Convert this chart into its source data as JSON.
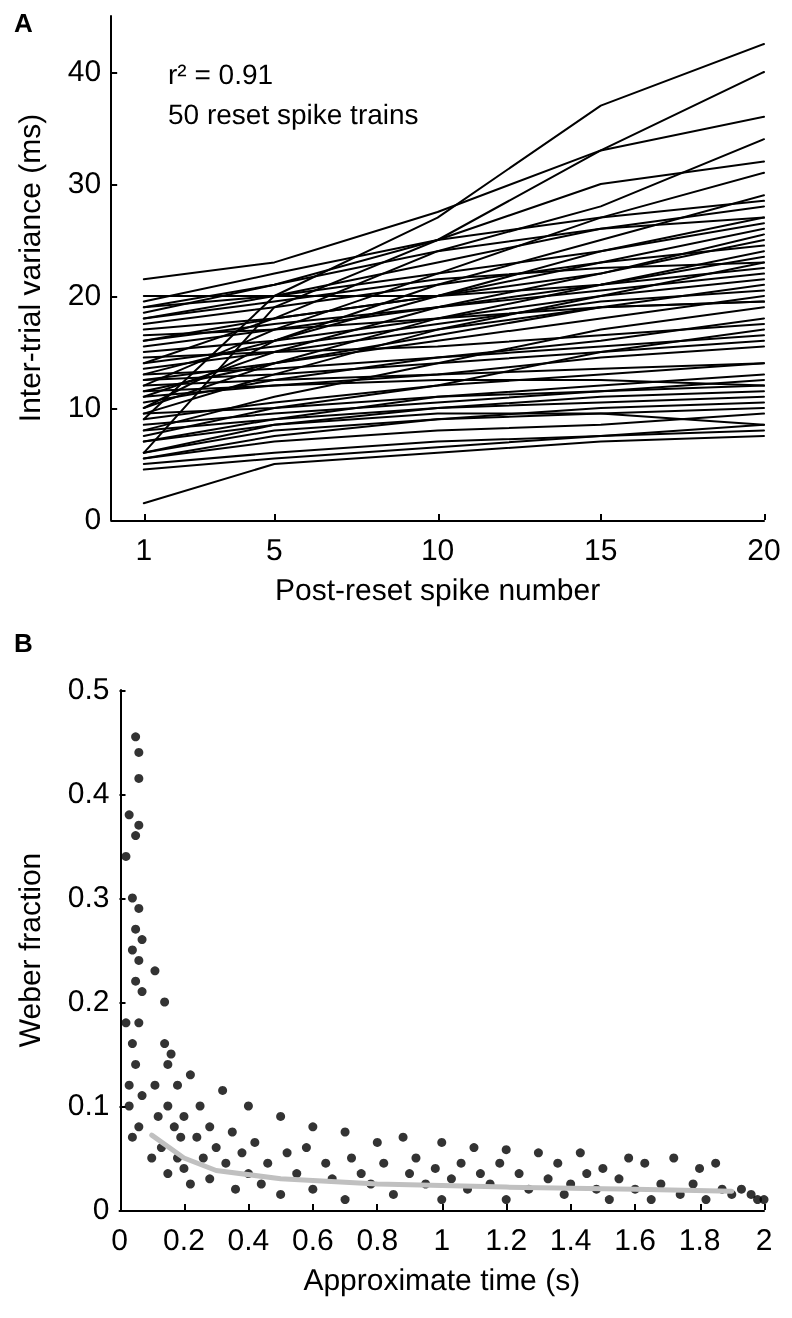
{
  "chart_data": [
    {
      "type": "line",
      "title": "A",
      "xlabel": "Post-reset spike number",
      "ylabel": "Inter-trial variance (ms)",
      "annotations": [
        "r² = 0.91",
        "50 reset spike trains"
      ],
      "marker": "none",
      "line_style": "solid",
      "xlim": [
        0,
        20
      ],
      "ylim": [
        0,
        45
      ],
      "xticks": [
        1,
        5,
        10,
        15,
        20
      ],
      "yticks": [
        0,
        10,
        20,
        30,
        40
      ],
      "x": [
        1,
        5,
        10,
        15,
        20
      ],
      "series": [
        {
          "color": "#000000",
          "values": [
            9,
            20,
            27,
            37,
            42.5
          ]
        },
        {
          "color": "#000000",
          "values": [
            6,
            19,
            25,
            33,
            40
          ]
        },
        {
          "color": "#000000",
          "values": [
            21.5,
            23,
            27.5,
            33,
            36
          ]
        },
        {
          "color": "#000000",
          "values": [
            14,
            18,
            24,
            28,
            34
          ]
        },
        {
          "color": "#000000",
          "values": [
            18.5,
            21,
            25,
            30,
            32
          ]
        },
        {
          "color": "#000000",
          "values": [
            12,
            17,
            22,
            27,
            31
          ]
        },
        {
          "color": "#000000",
          "values": [
            10,
            16,
            21,
            25,
            29
          ]
        },
        {
          "color": "#000000",
          "values": [
            19.5,
            22,
            25,
            27,
            28.5
          ]
        },
        {
          "color": "#000000",
          "values": [
            18,
            20,
            23,
            26,
            28
          ]
        },
        {
          "color": "#000000",
          "values": [
            13,
            16,
            20,
            24,
            27
          ]
        },
        {
          "color": "#000000",
          "values": [
            19,
            20,
            22,
            24,
            26.5
          ]
        },
        {
          "color": "#000000",
          "values": [
            16,
            18,
            20,
            23,
            26
          ]
        },
        {
          "color": "#000000",
          "values": [
            11,
            15,
            19,
            22,
            25.5
          ]
        },
        {
          "color": "#000000",
          "values": [
            17,
            18,
            20,
            22,
            25
          ]
        },
        {
          "color": "#000000",
          "values": [
            15,
            16,
            18,
            21,
            24
          ]
        },
        {
          "color": "#000000",
          "values": [
            9.5,
            13,
            17,
            20,
            23
          ]
        },
        {
          "color": "#000000",
          "values": [
            20,
            20,
            20,
            21,
            22.5
          ]
        },
        {
          "color": "#000000",
          "values": [
            13.5,
            15,
            17,
            19,
            21
          ]
        },
        {
          "color": "#000000",
          "values": [
            12.5,
            14,
            16,
            18,
            20
          ]
        },
        {
          "color": "#000000",
          "values": [
            16.5,
            17,
            18,
            19,
            19.5
          ]
        },
        {
          "color": "#000000",
          "values": [
            8,
            11,
            14,
            17,
            19
          ]
        },
        {
          "color": "#000000",
          "values": [
            10.5,
            12.5,
            14.5,
            16,
            18
          ]
        },
        {
          "color": "#000000",
          "values": [
            14.5,
            15,
            15.5,
            16.5,
            17.5
          ]
        },
        {
          "color": "#000000",
          "values": [
            7.5,
            10,
            12,
            15,
            17
          ]
        },
        {
          "color": "#000000",
          "values": [
            12,
            12.5,
            13,
            13.5,
            14
          ]
        },
        {
          "color": "#000000",
          "values": [
            11.5,
            12,
            12.5,
            12.5,
            12
          ]
        },
        {
          "color": "#000000",
          "values": [
            9.5,
            10,
            11,
            11.5,
            12
          ]
        },
        {
          "color": "#000000",
          "values": [
            7,
            8.5,
            10,
            11,
            11.5
          ]
        },
        {
          "color": "#000000",
          "values": [
            8,
            9,
            10,
            10.5,
            11
          ]
        },
        {
          "color": "#000000",
          "values": [
            6,
            8,
            9,
            9.5,
            10
          ]
        },
        {
          "color": "#000000",
          "values": [
            5.5,
            7,
            8,
            8.5,
            9.5
          ]
        },
        {
          "color": "#000000",
          "values": [
            4.5,
            5.5,
            6.5,
            7.5,
            8.5
          ]
        },
        {
          "color": "#000000",
          "values": [
            5,
            6,
            7,
            7.5,
            8
          ]
        },
        {
          "color": "#000000",
          "values": [
            1.5,
            5,
            6,
            7,
            7.5
          ]
        },
        {
          "color": "#000000",
          "values": [
            6,
            8.5,
            9.5,
            9.5,
            8.5
          ]
        },
        {
          "color": "#000000",
          "values": [
            17.5,
            19,
            21,
            23,
            24.5
          ]
        },
        {
          "color": "#000000",
          "values": [
            15.5,
            17,
            19,
            21,
            23.5
          ]
        },
        {
          "color": "#000000",
          "values": [
            10,
            14,
            18,
            20,
            21.5
          ]
        },
        {
          "color": "#000000",
          "values": [
            13,
            13.5,
            14.5,
            15.5,
            16.5
          ]
        },
        {
          "color": "#000000",
          "values": [
            11,
            12,
            13,
            14.5,
            15.5
          ]
        },
        {
          "color": "#000000",
          "values": [
            9,
            10.5,
            12,
            13,
            14
          ]
        },
        {
          "color": "#000000",
          "values": [
            7,
            9,
            11,
            12,
            13
          ]
        },
        {
          "color": "#000000",
          "values": [
            18,
            19.5,
            21.5,
            22.5,
            23
          ]
        },
        {
          "color": "#000000",
          "values": [
            14,
            15.5,
            17.5,
            19.5,
            20.5
          ]
        },
        {
          "color": "#000000",
          "values": [
            16,
            17.5,
            19,
            20.5,
            22
          ]
        },
        {
          "color": "#000000",
          "values": [
            5.5,
            7.5,
            9,
            10,
            10.5
          ]
        },
        {
          "color": "#000000",
          "values": [
            12.5,
            13,
            14,
            15,
            16
          ]
        },
        {
          "color": "#000000",
          "values": [
            8.5,
            9.5,
            10.5,
            11.5,
            12.5
          ]
        },
        {
          "color": "#000000",
          "values": [
            19,
            21,
            24,
            26,
            27
          ]
        },
        {
          "color": "#000000",
          "values": [
            11.5,
            14,
            16.5,
            19,
            19.5
          ]
        }
      ]
    },
    {
      "type": "scatter",
      "title": "B",
      "xlabel": "Approximate time (s)",
      "ylabel": "Weber fraction",
      "marker": "circle",
      "line_style": "solid",
      "xlim": [
        0,
        2
      ],
      "ylim": [
        0,
        0.5
      ],
      "xticks": [
        0,
        0.2,
        0.4,
        0.6,
        0.8,
        1,
        1.2,
        1.4,
        1.6,
        1.8,
        2
      ],
      "yticks": [
        0,
        0.1,
        0.2,
        0.3,
        0.4,
        0.5
      ],
      "series": [
        {
          "color": "#000000",
          "x": [
            0.02,
            0.02,
            0.03,
            0.03,
            0.04,
            0.04,
            0.04,
            0.05,
            0.05,
            0.05,
            0.05,
            0.05,
            0.06,
            0.06,
            0.06,
            0.06,
            0.06,
            0.06,
            0.06,
            0.07,
            0.07,
            0.07,
            0.03,
            0.04,
            0.1,
            0.11,
            0.11,
            0.12,
            0.13,
            0.14,
            0.14,
            0.15,
            0.15,
            0.15,
            0.16,
            0.17,
            0.18,
            0.18,
            0.19,
            0.2,
            0.2,
            0.22,
            0.22,
            0.24,
            0.25,
            0.26,
            0.28,
            0.28,
            0.3,
            0.32,
            0.33,
            0.35,
            0.36,
            0.38,
            0.4,
            0.4,
            0.42,
            0.44,
            0.46,
            0.5,
            0.5,
            0.52,
            0.55,
            0.58,
            0.6,
            0.6,
            0.64,
            0.66,
            0.7,
            0.7,
            0.72,
            0.75,
            0.78,
            0.8,
            0.82,
            0.85,
            0.88,
            0.9,
            0.92,
            0.95,
            0.98,
            1,
            1,
            1.03,
            1.06,
            1.08,
            1.1,
            1.12,
            1.15,
            1.18,
            1.2,
            1.2,
            1.24,
            1.27,
            1.3,
            1.33,
            1.36,
            1.38,
            1.4,
            1.43,
            1.45,
            1.48,
            1.5,
            1.52,
            1.55,
            1.58,
            1.6,
            1.63,
            1.65,
            1.68,
            1.72,
            1.74,
            1.78,
            1.8,
            1.82,
            1.85,
            1.87,
            1.9,
            1.93,
            1.96,
            1.98,
            2
          ],
          "values": [
            0.34,
            0.18,
            0.38,
            0.12,
            0.3,
            0.25,
            0.16,
            0.455,
            0.36,
            0.27,
            0.22,
            0.14,
            0.44,
            0.415,
            0.37,
            0.29,
            0.24,
            0.18,
            0.08,
            0.26,
            0.21,
            0.11,
            0.1,
            0.07,
            0.05,
            0.23,
            0.12,
            0.09,
            0.06,
            0.2,
            0.16,
            0.14,
            0.1,
            0.035,
            0.15,
            0.08,
            0.12,
            0.05,
            0.07,
            0.09,
            0.04,
            0.13,
            0.025,
            0.07,
            0.1,
            0.05,
            0.08,
            0.03,
            0.06,
            0.115,
            0.045,
            0.075,
            0.02,
            0.055,
            0.035,
            0.1,
            0.065,
            0.025,
            0.045,
            0.09,
            0.015,
            0.055,
            0.035,
            0.06,
            0.08,
            0.02,
            0.045,
            0.03,
            0.075,
            0.01,
            0.05,
            0.035,
            0.025,
            0.065,
            0.045,
            0.015,
            0.07,
            0.035,
            0.05,
            0.025,
            0.04,
            0.065,
            0.01,
            0.03,
            0.045,
            0.02,
            0.06,
            0.035,
            0.025,
            0.045,
            0.058,
            0.01,
            0.035,
            0.02,
            0.055,
            0.03,
            0.045,
            0.015,
            0.025,
            0.055,
            0.035,
            0.02,
            0.04,
            0.01,
            0.03,
            0.05,
            0.02,
            0.045,
            0.01,
            0.025,
            0.05,
            0.015,
            0.025,
            0.04,
            0.01,
            0.045,
            0.02,
            0.015,
            0.02,
            0.015,
            0.01,
            0.01
          ]
        },
        {
          "type": "line",
          "marker": "none",
          "color": "#c0c0c0",
          "x": [
            0.1,
            0.2,
            0.3,
            0.5,
            0.8,
            1.2,
            1.6,
            1.9
          ],
          "values": [
            0.072,
            0.05,
            0.038,
            0.03,
            0.025,
            0.022,
            0.02,
            0.018
          ]
        }
      ]
    }
  ]
}
